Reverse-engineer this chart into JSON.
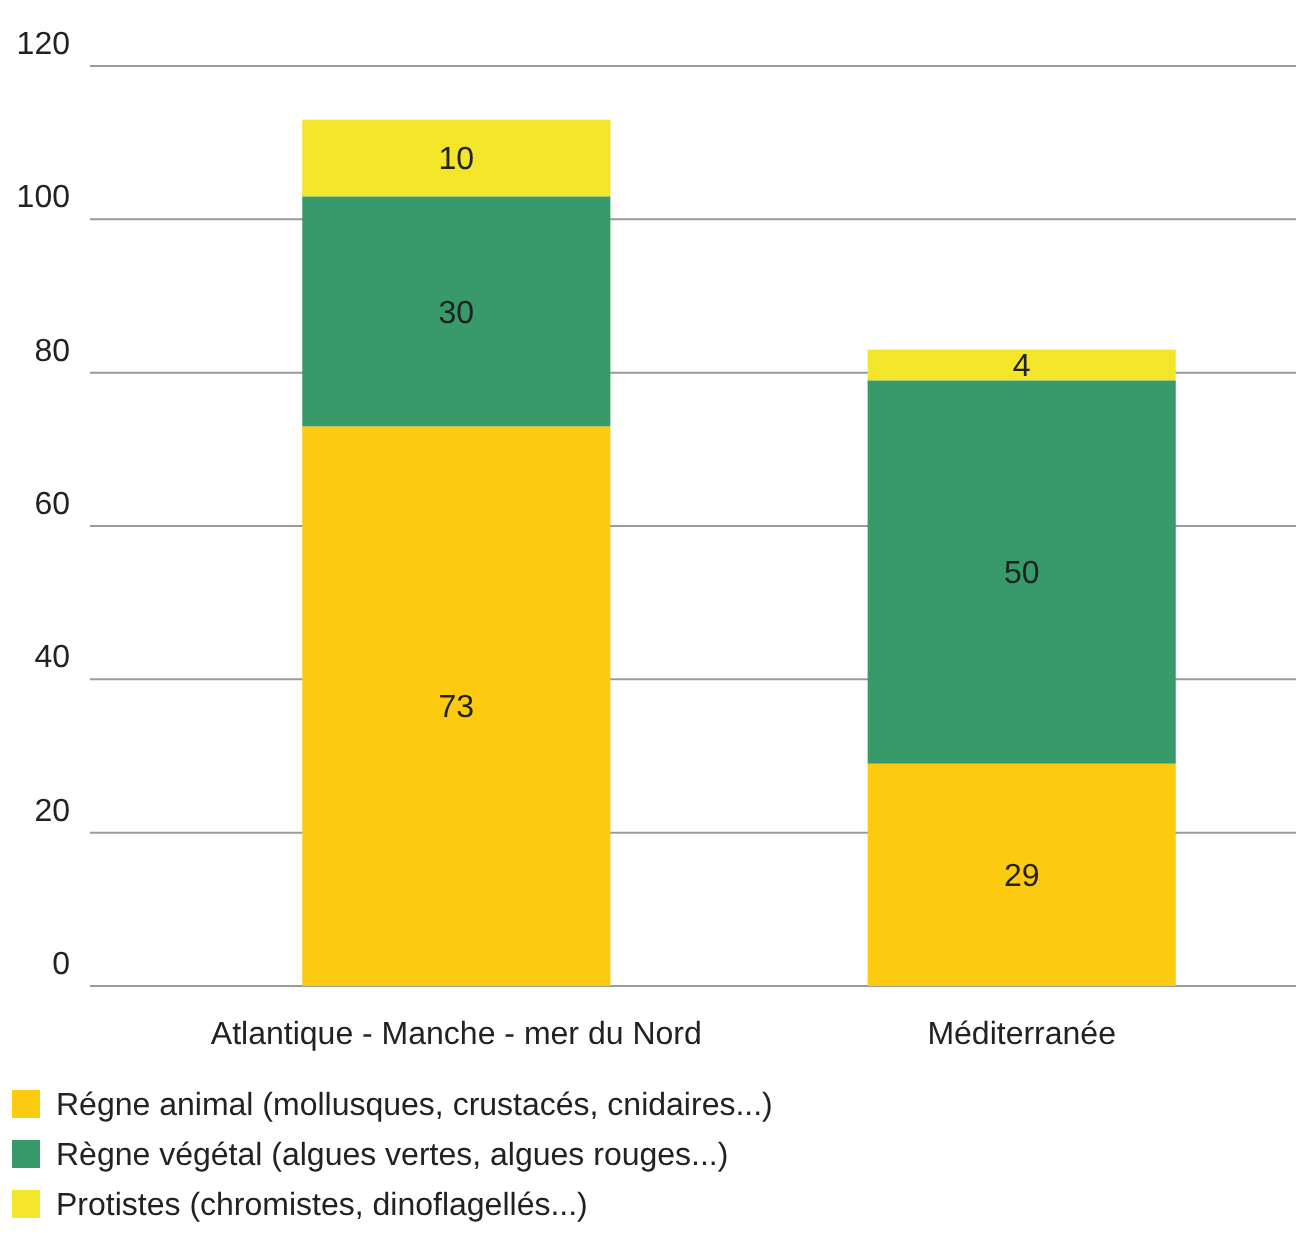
{
  "chart_data": {
    "type": "bar",
    "stacked": true,
    "categories": [
      "Atlantique - Manche - mer du Nord",
      "Méditerranée"
    ],
    "series": [
      {
        "name": "Régne animal (mollusques, crustacés, cnidaires...)",
        "color": "#fccb0f",
        "values": [
          73,
          29
        ]
      },
      {
        "name": "Règne végétal (algues vertes, algues rouges...)",
        "color": "#389a6a",
        "values": [
          30,
          50
        ]
      },
      {
        "name": "Protistes (chromistes, dinoflagellés...)",
        "color": "#f3e52a",
        "values": [
          10,
          4
        ]
      }
    ],
    "ylim": [
      0,
      120
    ],
    "yticks": [
      0,
      20,
      40,
      60,
      80,
      100,
      120
    ],
    "grid": "y",
    "legend": "bottom",
    "data_labels": true
  }
}
